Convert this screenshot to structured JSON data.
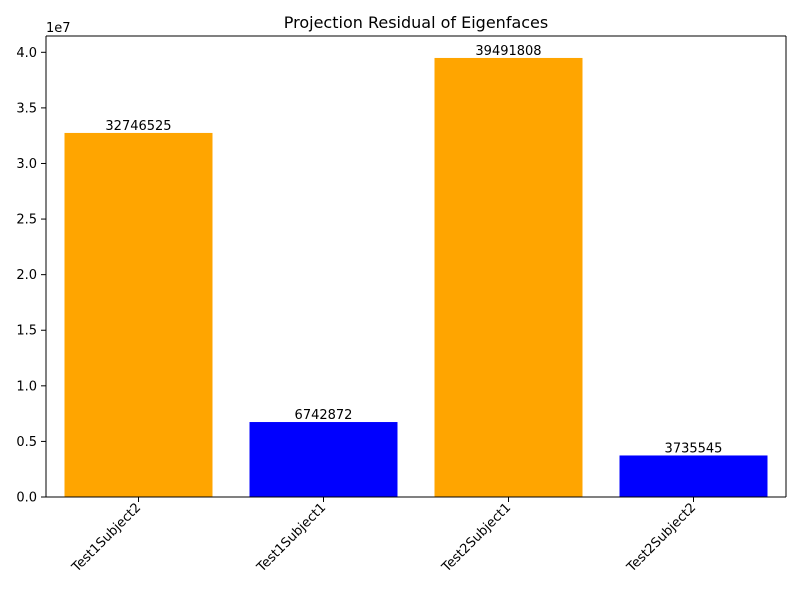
{
  "chart_data": {
    "type": "bar",
    "title": "Projection Residual of Eigenfaces",
    "xlabel": "",
    "ylabel": "",
    "categories": [
      "Test1Subject2",
      "Test1Subject1",
      "Test2Subject1",
      "Test2Subject2"
    ],
    "values": [
      32746525,
      6742872,
      39491808,
      3735545
    ],
    "bar_colors": [
      "#ffa500",
      "#0000ff",
      "#ffa500",
      "#0000ff"
    ],
    "y_scale_label": "1e7",
    "y_scale_factor": 10000000,
    "ylim": [
      0,
      41466398
    ],
    "yticks": [
      0,
      5000000,
      10000000,
      15000000,
      20000000,
      25000000,
      30000000,
      35000000,
      40000000
    ],
    "ytick_labels": [
      "0.0",
      "0.5",
      "1.0",
      "1.5",
      "2.0",
      "2.5",
      "3.0",
      "3.5",
      "4.0"
    ],
    "x_tick_rotation_deg": 45,
    "grid": false,
    "legend": "none"
  }
}
